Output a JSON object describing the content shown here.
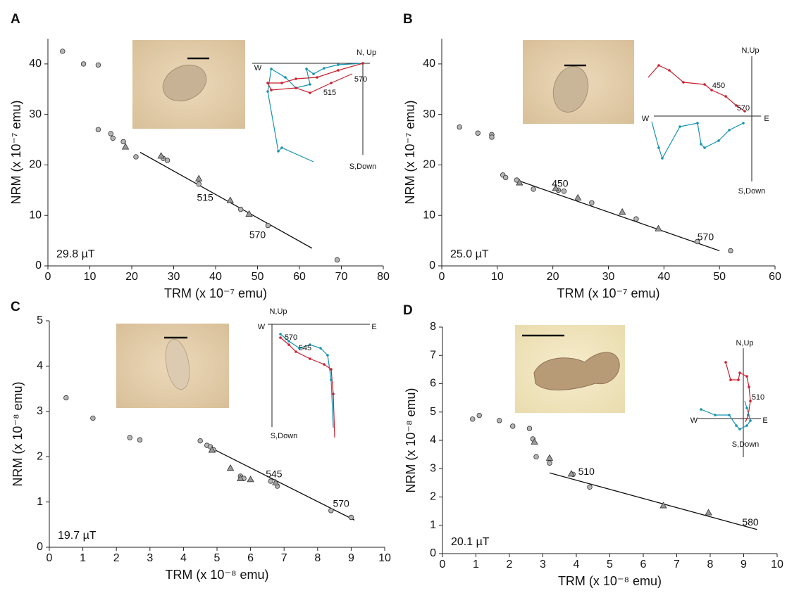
{
  "chart_data": [
    {
      "type": "scatter",
      "panel": "A",
      "x_label": "TRM (x 10⁻⁷ emu)",
      "y_label": "NRM (x 10⁻⁷ emu)",
      "field": "29.8 µT",
      "xlim": [
        0,
        80
      ],
      "xticks": [
        0,
        10,
        20,
        30,
        40,
        50,
        60,
        70,
        80
      ],
      "ylim": [
        0,
        45
      ],
      "yticks": [
        0,
        10,
        20,
        30,
        40
      ],
      "points": {
        "x": [
          3.5,
          8.5,
          12,
          12,
          15,
          15.5,
          18,
          21,
          27.5,
          28.5,
          36,
          46,
          52.5,
          69
        ],
        "y": [
          42.5,
          40,
          39.8,
          27,
          26.2,
          25.3,
          24.6,
          21.6,
          21.3,
          20.9,
          16.2,
          11.2,
          8,
          1.2
        ]
      },
      "checks": {
        "x": [
          18.5,
          27,
          36,
          43.5,
          48
        ],
        "y": [
          23.6,
          21.8,
          17.3,
          13,
          10.3
        ]
      },
      "fit_line": {
        "x": [
          22,
          63
        ],
        "y": [
          22.5,
          3.5
        ]
      },
      "step_labels": [
        "515",
        "570"
      ],
      "inset_labels": [
        "N, Up",
        "W",
        "S,Down",
        "515",
        "570"
      ]
    },
    {
      "type": "scatter",
      "panel": "B",
      "x_label": "TRM (x 10⁻⁷ emu)",
      "y_label": "NRM (x 10⁻⁷ emu)",
      "field": "25.0 µT",
      "xlim": [
        0,
        60
      ],
      "xticks": [
        0,
        10,
        20,
        30,
        40,
        50,
        60
      ],
      "ylim": [
        0,
        45
      ],
      "yticks": [
        0,
        10,
        20,
        30,
        40
      ],
      "points": {
        "x": [
          3.2,
          6.5,
          9,
          9,
          11,
          11.5,
          13.5,
          16.5,
          21,
          22,
          27,
          35,
          46,
          52
        ],
        "y": [
          27.5,
          26.3,
          26,
          25.5,
          18,
          17.5,
          17,
          15.2,
          15,
          14.8,
          12.5,
          9.3,
          4.8,
          3
        ]
      },
      "checks": {
        "x": [
          14,
          20.5,
          24.5,
          32.5,
          39
        ],
        "y": [
          16.5,
          15.4,
          13.5,
          10.7,
          7.4
        ]
      },
      "fit_line": {
        "x": [
          14,
          50
        ],
        "y": [
          16.8,
          3
        ]
      },
      "step_labels": [
        "450",
        "570"
      ],
      "inset_labels": [
        "N,Up",
        "W",
        "E",
        "S,Down",
        "450",
        "570"
      ]
    },
    {
      "type": "scatter",
      "panel": "C",
      "x_label": "TRM (x 10⁻⁸ emu)",
      "y_label": "NRM (x 10⁻⁸ emu)",
      "field": "19.7 µT",
      "xlim": [
        0,
        10
      ],
      "xticks": [
        0,
        1,
        2,
        3,
        4,
        5,
        6,
        7,
        8,
        9,
        10
      ],
      "ylim": [
        0,
        5
      ],
      "yticks": [
        0,
        1,
        2,
        3,
        4,
        5
      ],
      "points": {
        "x": [
          0.5,
          1.3,
          2.4,
          2.7,
          4.5,
          4.7,
          4.8,
          4.9,
          5.7,
          5.8,
          6.6,
          6.8,
          8.4,
          9
        ],
        "y": [
          3.3,
          2.85,
          2.42,
          2.37,
          2.35,
          2.25,
          2.22,
          2.15,
          1.57,
          1.52,
          1.46,
          1.35,
          0.81,
          0.66
        ]
      },
      "checks": {
        "x": [
          4.85,
          5.4,
          5.7,
          6,
          6.75
        ],
        "y": [
          2.15,
          1.75,
          1.52,
          1.5,
          1.43
        ]
      },
      "fit_line": {
        "x": [
          4.8,
          9.1
        ],
        "y": [
          2.2,
          0.6
        ]
      },
      "step_labels": [
        "545",
        "570"
      ],
      "inset_labels": [
        "N,Up",
        "W",
        "E",
        "S,Down",
        "570",
        "545"
      ]
    },
    {
      "type": "scatter",
      "panel": "D",
      "x_label": "TRM (x 10⁻⁸ emu)",
      "y_label": "NRM (x 10⁻⁸ emu)",
      "field": "20.1 µT",
      "xlim": [
        0,
        10
      ],
      "xticks": [
        0,
        1,
        2,
        3,
        4,
        5,
        6,
        7,
        8,
        9,
        10
      ],
      "ylim": [
        0,
        8
      ],
      "yticks": [
        0,
        1,
        2,
        3,
        4,
        5,
        6,
        7,
        8
      ],
      "points": {
        "x": [
          0.9,
          1.1,
          1.7,
          2.1,
          2.6,
          2.7,
          2.8,
          3.2,
          3.9,
          4.4
        ],
        "y": [
          4.75,
          4.88,
          4.7,
          4.5,
          4.42,
          4.05,
          3.42,
          3.2,
          2.8,
          2.35
        ]
      },
      "checks": {
        "x": [
          2.75,
          3.2,
          3.85,
          6.6,
          7.95
        ],
        "y": [
          3.95,
          3.38,
          2.82,
          1.7,
          1.45
        ]
      },
      "fit_line": {
        "x": [
          3.2,
          9.4
        ],
        "y": [
          2.85,
          0.85
        ]
      },
      "step_labels": [
        "510",
        "580"
      ],
      "inset_labels": [
        "N,Up",
        "W",
        "E",
        "S,Down",
        "510"
      ]
    }
  ]
}
